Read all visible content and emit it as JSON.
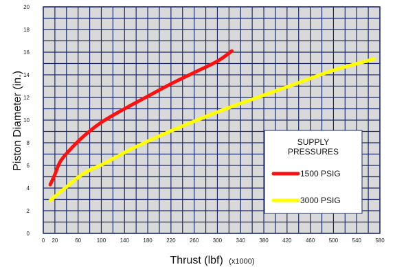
{
  "chart_data": {
    "type": "line",
    "title": "SUPPLY PRESSURES",
    "xlabel": "Thrust (lbf)",
    "xlabel_unit": "(x1000)",
    "ylabel": "Piston Diameter (in.)",
    "xlim": [
      0,
      580
    ],
    "ylim": [
      0,
      20
    ],
    "x_ticks": [
      0,
      20,
      60,
      100,
      140,
      180,
      220,
      260,
      300,
      340,
      380,
      420,
      460,
      500,
      540,
      580
    ],
    "x_grid": [
      0,
      20,
      40,
      60,
      80,
      100,
      120,
      140,
      160,
      180,
      200,
      220,
      240,
      260,
      280,
      300,
      320,
      340,
      360,
      380,
      400,
      420,
      440,
      460,
      480,
      500,
      520,
      540,
      560,
      580
    ],
    "y_ticks": [
      0,
      2,
      4,
      6,
      8,
      10,
      12,
      14,
      16,
      18,
      20
    ],
    "grid": true,
    "legend": {
      "title_line1": "SUPPLY",
      "title_line2": "PRESSURES",
      "placement": "right"
    },
    "series": [
      {
        "name": "1500 PSIG",
        "color": "#ff1010",
        "points": [
          [
            12,
            4.3
          ],
          [
            20,
            5.2
          ],
          [
            30,
            6.4
          ],
          [
            50,
            7.6
          ],
          [
            70,
            8.6
          ],
          [
            100,
            9.8
          ],
          [
            140,
            11.0
          ],
          [
            180,
            12.1
          ],
          [
            220,
            13.2
          ],
          [
            260,
            14.2
          ],
          [
            300,
            15.2
          ],
          [
            325,
            16.1
          ]
        ]
      },
      {
        "name": "3000 PSIG",
        "color": "#ffff00",
        "points": [
          [
            12,
            2.9
          ],
          [
            40,
            4.1
          ],
          [
            70,
            5.3
          ],
          [
            110,
            6.3
          ],
          [
            150,
            7.4
          ],
          [
            200,
            8.6
          ],
          [
            260,
            9.9
          ],
          [
            320,
            11.1
          ],
          [
            380,
            12.2
          ],
          [
            440,
            13.3
          ],
          [
            500,
            14.4
          ],
          [
            570,
            15.4
          ]
        ]
      }
    ]
  }
}
